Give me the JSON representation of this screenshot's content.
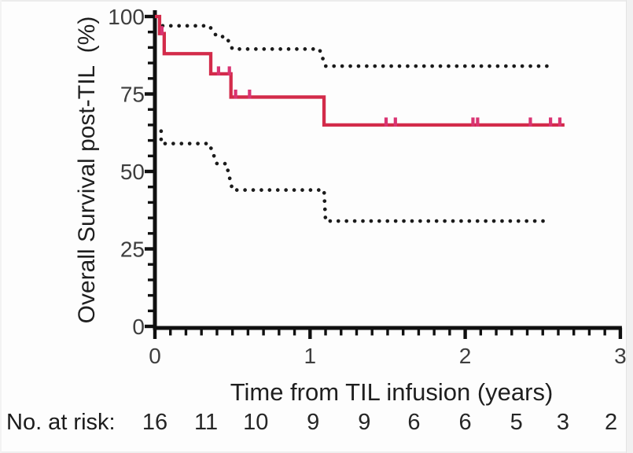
{
  "figure": {
    "ylabel": "Overall Survival post-TIL  (%)",
    "xlabel": "Time from TIL infusion (years)",
    "risk_label": "No. at risk:"
  },
  "chart_data": {
    "type": "line",
    "subtype": "kaplan-meier-step",
    "title": "",
    "xlabel": "Time from TIL infusion (years)",
    "ylabel": "Overall Survival post-TIL (%)",
    "xlim": [
      0,
      3
    ],
    "ylim": [
      0,
      100
    ],
    "x_major_ticks": [
      0,
      1,
      2,
      3
    ],
    "x_minor_step": 0.1,
    "y_major_ticks": [
      0,
      25,
      50,
      75,
      100
    ],
    "y_minor_step": 5,
    "grid": false,
    "legend": "none",
    "colors": {
      "curve": "#d32b4a",
      "censor": "#d93472",
      "ci": "#1b1b1b",
      "axis": "#101010"
    },
    "series": [
      {
        "name": "overall-survival-estimate",
        "style": "solid",
        "color": "#d32b4a",
        "step_points": [
          [
            0,
            100
          ],
          [
            0.03,
            100
          ],
          [
            0.03,
            94.5
          ],
          [
            0.06,
            94.5
          ],
          [
            0.06,
            88
          ],
          [
            0.36,
            88
          ],
          [
            0.36,
            81.5
          ],
          [
            0.49,
            81.5
          ],
          [
            0.49,
            74
          ],
          [
            1.09,
            74
          ],
          [
            1.09,
            65
          ],
          [
            2.64,
            65
          ]
        ]
      },
      {
        "name": "ci-upper-95",
        "style": "dotted",
        "color": "#1b1b1b",
        "step_points": [
          [
            0.05,
            97
          ],
          [
            0.35,
            97
          ],
          [
            0.4,
            93.5
          ],
          [
            0.46,
            93.5
          ],
          [
            0.5,
            89.5
          ],
          [
            1.06,
            89.5
          ],
          [
            1.1,
            84
          ],
          [
            2.57,
            84
          ]
        ]
      },
      {
        "name": "ci-lower-95",
        "style": "dotted",
        "color": "#1b1b1b",
        "step_points": [
          [
            0.04,
            63
          ],
          [
            0.04,
            59
          ],
          [
            0.35,
            59
          ],
          [
            0.4,
            52.5
          ],
          [
            0.46,
            52.5
          ],
          [
            0.5,
            44
          ],
          [
            1.09,
            44
          ],
          [
            1.1,
            34
          ],
          [
            2.55,
            34
          ]
        ]
      }
    ],
    "censor_marks": {
      "color": "#d93472",
      "points": [
        [
          0.045,
          94.5
        ],
        [
          0.41,
          81.5
        ],
        [
          0.48,
          81.5
        ],
        [
          0.52,
          74
        ],
        [
          0.61,
          74
        ],
        [
          1.49,
          65
        ],
        [
          1.55,
          65
        ],
        [
          2.05,
          65
        ],
        [
          2.08,
          65
        ],
        [
          2.42,
          65
        ],
        [
          2.55,
          65
        ],
        [
          2.61,
          65
        ]
      ]
    },
    "risk_table": {
      "label": "No. at risk:",
      "times": [
        0,
        0.33,
        0.65,
        1.02,
        1.35,
        1.67,
        2.0,
        2.33,
        2.63,
        2.94
      ],
      "values": [
        16,
        11,
        10,
        9,
        9,
        6,
        6,
        5,
        3,
        2
      ]
    }
  }
}
